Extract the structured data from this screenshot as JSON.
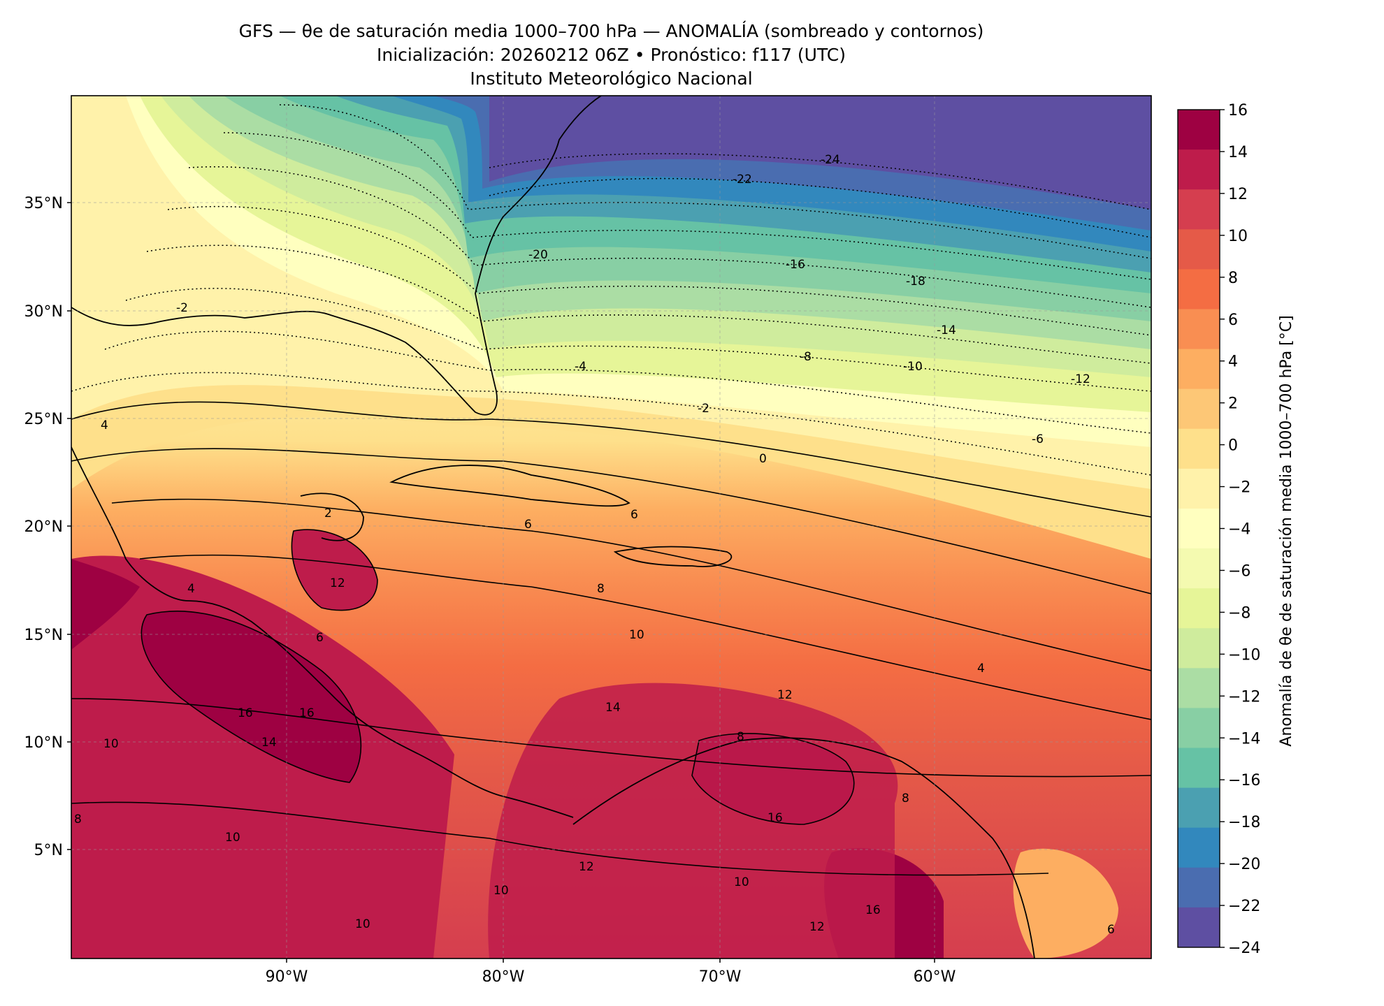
{
  "title": {
    "line1": "GFS — θe de saturación media 1000–700 hPa — ANOMALÍA (sombreado y contornos)",
    "line2": "Inicialización: 20260212 06Z   •   Pronóstico: f117 (UTC)",
    "line3": "Instituto Meteorológico Nacional"
  },
  "axes": {
    "lat_labels": [
      "35°N",
      "30°N",
      "25°N",
      "20°N",
      "15°N",
      "10°N",
      "5°N"
    ],
    "lon_labels": [
      "90°W",
      "80°W",
      "70°W",
      "60°W"
    ]
  },
  "colorbar": {
    "label": "Anomalía de θe de saturación media 1000–700 hPa [°C]",
    "levels": [
      16,
      14,
      12,
      10,
      8,
      6,
      4,
      2,
      0,
      -2,
      -4,
      -6,
      -8,
      -10,
      -12,
      -14,
      -16,
      -18,
      -20,
      -22,
      -24
    ],
    "tick_labels": [
      "16",
      "14",
      "12",
      "10",
      "8",
      "6",
      "4",
      "2",
      "0",
      "−2",
      "−4",
      "−6",
      "−8",
      "−10",
      "−12",
      "−14",
      "−16",
      "−18",
      "−20",
      "−22",
      "−24"
    ],
    "colors_top_to_bottom": [
      "#9e0142",
      "#be1c4b",
      "#d53e4f",
      "#e55a48",
      "#f46d43",
      "#f98e52",
      "#fdae61",
      "#fdc776",
      "#fee08b",
      "#fff2aa",
      "#ffffbf",
      "#f4fab0",
      "#e6f598",
      "#cfec9d",
      "#abdda4",
      "#88cfa4",
      "#66c2a5",
      "#4ba0b1",
      "#3288bd",
      "#4a6db0",
      "#5e4fa2"
    ]
  },
  "contour_labels": [
    "-24",
    "-22",
    "-20",
    "-18",
    "-16",
    "-14",
    "-12",
    "-10",
    "-8",
    "-6",
    "-4",
    "-2",
    "0",
    "2",
    "4",
    "6",
    "8",
    "10",
    "12",
    "14",
    "16"
  ],
  "map_labels": {
    "m24": "-24",
    "m22": "-22",
    "m20": "-20",
    "m18": "-18",
    "m16": "-16",
    "m14": "-14",
    "m12": "-12",
    "m10": "-10",
    "m8": "-8",
    "m6": "-6",
    "m4": "-4",
    "m2a": "-2",
    "m2b": "-2",
    "z0": "0",
    "p2": "2",
    "p4a": "4",
    "p4b": "4",
    "p4c": "4",
    "p6a": "6",
    "p6b": "6",
    "p6c": "6",
    "p6d": "6",
    "p8a": "8",
    "p8b": "8",
    "p8c": "8",
    "p8d": "8",
    "p10a": "10",
    "p10b": "10",
    "p10c": "10",
    "p10d": "10",
    "p10e": "10",
    "p10f": "10",
    "p12a": "12",
    "p12b": "12",
    "p12c": "12",
    "p12d": "12",
    "p14a": "14",
    "p14b": "14",
    "p16a": "16",
    "p16b": "16",
    "p16c": "16",
    "p16d": "16"
  }
}
